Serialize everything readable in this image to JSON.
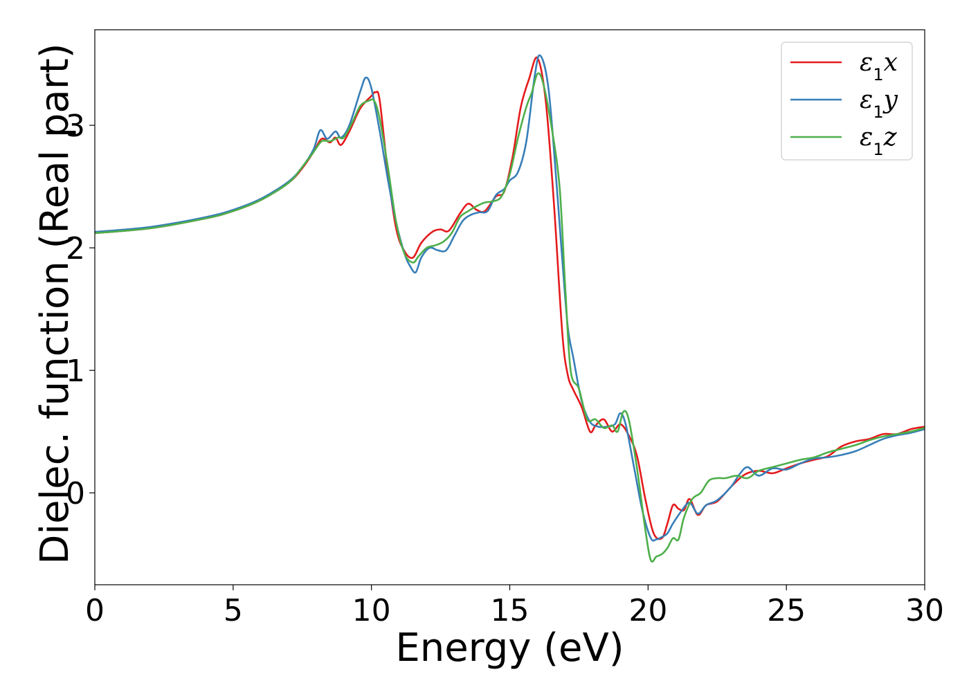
{
  "chart_data": {
    "type": "line",
    "xlabel": "Energy (eV)",
    "ylabel": "Dielec. function (Real part)",
    "xlim": [
      0,
      30
    ],
    "ylim": [
      -0.75,
      3.78
    ],
    "xticks": [
      0,
      5,
      10,
      15,
      20,
      25,
      30
    ],
    "yticks": [
      0,
      1,
      2,
      3
    ],
    "grid": false,
    "legend_position": "top-right",
    "series": [
      {
        "name": "ε1x",
        "label_base": "ε",
        "label_sub": "1",
        "label_tail": "x",
        "color": "#e41a1c",
        "x": [
          0,
          2,
          4,
          5,
          6,
          7,
          7.5,
          7.9,
          8.2,
          8.5,
          8.7,
          8.9,
          9.2,
          9.6,
          10.0,
          10.15,
          10.3,
          10.6,
          10.9,
          11.2,
          11.5,
          11.8,
          12.2,
          12.5,
          12.8,
          13.2,
          13.5,
          13.8,
          14.1,
          14.5,
          14.8,
          15.1,
          15.4,
          15.7,
          16.0,
          16.3,
          16.6,
          16.9,
          17.1,
          17.3,
          17.6,
          17.9,
          18.1,
          18.4,
          18.7,
          19.0,
          19.3,
          19.6,
          19.9,
          20.2,
          20.5,
          20.7,
          20.9,
          21.1,
          21.3,
          21.5,
          21.8,
          22.1,
          22.5,
          23.0,
          23.5,
          24.0,
          24.5,
          25.0,
          25.5,
          26.0,
          26.5,
          27.0,
          27.5,
          28.0,
          28.5,
          29.0,
          29.5,
          30.0
        ],
        "y": [
          2.12,
          2.16,
          2.24,
          2.3,
          2.39,
          2.53,
          2.65,
          2.78,
          2.89,
          2.86,
          2.9,
          2.84,
          2.95,
          3.14,
          3.24,
          3.27,
          3.2,
          2.6,
          2.15,
          1.97,
          1.92,
          2.04,
          2.13,
          2.15,
          2.14,
          2.28,
          2.36,
          2.31,
          2.3,
          2.42,
          2.46,
          2.74,
          3.15,
          3.38,
          3.55,
          3.2,
          2.35,
          1.3,
          0.96,
          0.84,
          0.7,
          0.5,
          0.55,
          0.6,
          0.5,
          0.56,
          0.47,
          0.3,
          -0.05,
          -0.33,
          -0.37,
          -0.25,
          -0.1,
          -0.13,
          -0.14,
          -0.05,
          -0.18,
          -0.1,
          -0.07,
          0.05,
          0.15,
          0.18,
          0.16,
          0.2,
          0.24,
          0.27,
          0.3,
          0.38,
          0.42,
          0.44,
          0.48,
          0.48,
          0.52,
          0.54
        ]
      },
      {
        "name": "ε1y",
        "label_base": "ε",
        "label_sub": "1",
        "label_tail": "y",
        "color": "#377eb8",
        "x": [
          0,
          2,
          4,
          5,
          6,
          7,
          7.5,
          7.9,
          8.15,
          8.4,
          8.7,
          8.9,
          9.2,
          9.6,
          9.8,
          10.0,
          10.3,
          10.6,
          10.9,
          11.2,
          11.4,
          11.6,
          11.8,
          12.1,
          12.4,
          12.7,
          13.0,
          13.3,
          13.6,
          13.9,
          14.2,
          14.5,
          14.8,
          15.0,
          15.3,
          15.6,
          15.9,
          16.1,
          16.4,
          16.7,
          16.9,
          17.1,
          17.3,
          17.6,
          17.9,
          18.2,
          18.5,
          18.8,
          19.0,
          19.2,
          19.5,
          19.8,
          20.1,
          20.3,
          20.5,
          20.7,
          20.9,
          21.2,
          21.5,
          21.8,
          22.1,
          22.5,
          23.0,
          23.3,
          23.6,
          24.0,
          24.5,
          25.0,
          25.5,
          26.0,
          26.5,
          27.0,
          27.5,
          28.0,
          28.5,
          29.0,
          29.5,
          30.0
        ],
        "y": [
          2.13,
          2.17,
          2.25,
          2.31,
          2.4,
          2.54,
          2.66,
          2.8,
          2.96,
          2.89,
          2.95,
          2.9,
          3.0,
          3.28,
          3.39,
          3.3,
          2.95,
          2.55,
          2.2,
          1.95,
          1.85,
          1.8,
          1.92,
          2.0,
          1.98,
          1.98,
          2.1,
          2.22,
          2.27,
          2.29,
          2.3,
          2.43,
          2.48,
          2.55,
          2.62,
          2.87,
          3.4,
          3.57,
          3.3,
          2.5,
          1.9,
          1.35,
          1.1,
          0.75,
          0.58,
          0.54,
          0.54,
          0.56,
          0.65,
          0.55,
          0.2,
          -0.15,
          -0.37,
          -0.38,
          -0.36,
          -0.33,
          -0.25,
          -0.15,
          -0.08,
          -0.17,
          -0.1,
          -0.06,
          0.05,
          0.15,
          0.21,
          0.14,
          0.2,
          0.19,
          0.24,
          0.28,
          0.29,
          0.31,
          0.34,
          0.39,
          0.44,
          0.47,
          0.49,
          0.52
        ]
      },
      {
        "name": "ε1z",
        "label_base": "ε",
        "label_sub": "1",
        "label_tail": "z",
        "color": "#4daf4a",
        "x": [
          0,
          2,
          4,
          5,
          6,
          7,
          7.5,
          7.9,
          8.2,
          8.5,
          8.8,
          9.0,
          9.3,
          9.6,
          9.9,
          10.1,
          10.3,
          10.6,
          10.9,
          11.2,
          11.5,
          11.7,
          12.0,
          12.3,
          12.6,
          12.9,
          13.2,
          13.5,
          13.8,
          14.1,
          14.4,
          14.7,
          15.0,
          15.3,
          15.6,
          15.8,
          16.0,
          16.2,
          16.5,
          16.8,
          17.0,
          17.2,
          17.5,
          17.8,
          18.1,
          18.4,
          18.7,
          18.9,
          19.1,
          19.3,
          19.6,
          19.9,
          20.1,
          20.3,
          20.5,
          20.7,
          20.9,
          21.1,
          21.3,
          21.6,
          21.9,
          22.2,
          22.5,
          22.8,
          23.2,
          23.6,
          24.0,
          24.5,
          25.0,
          25.5,
          26.0,
          26.5,
          27.0,
          27.5,
          28.0,
          28.5,
          29.0,
          29.5,
          30.0
        ],
        "y": [
          2.12,
          2.16,
          2.24,
          2.3,
          2.39,
          2.53,
          2.66,
          2.78,
          2.87,
          2.87,
          2.9,
          2.9,
          3.02,
          3.16,
          3.2,
          3.2,
          3.05,
          2.65,
          2.2,
          1.95,
          1.88,
          1.93,
          2.0,
          2.02,
          2.05,
          2.12,
          2.25,
          2.3,
          2.34,
          2.37,
          2.38,
          2.42,
          2.6,
          2.9,
          3.15,
          3.27,
          3.42,
          3.35,
          3.0,
          2.5,
          1.7,
          1.0,
          0.85,
          0.6,
          0.6,
          0.53,
          0.55,
          0.5,
          0.66,
          0.6,
          0.2,
          -0.3,
          -0.55,
          -0.52,
          -0.5,
          -0.45,
          -0.37,
          -0.38,
          -0.2,
          -0.05,
          0.0,
          0.1,
          0.12,
          0.12,
          0.14,
          0.12,
          0.18,
          0.21,
          0.24,
          0.27,
          0.29,
          0.33,
          0.36,
          0.39,
          0.43,
          0.46,
          0.48,
          0.5,
          0.53
        ]
      }
    ]
  }
}
